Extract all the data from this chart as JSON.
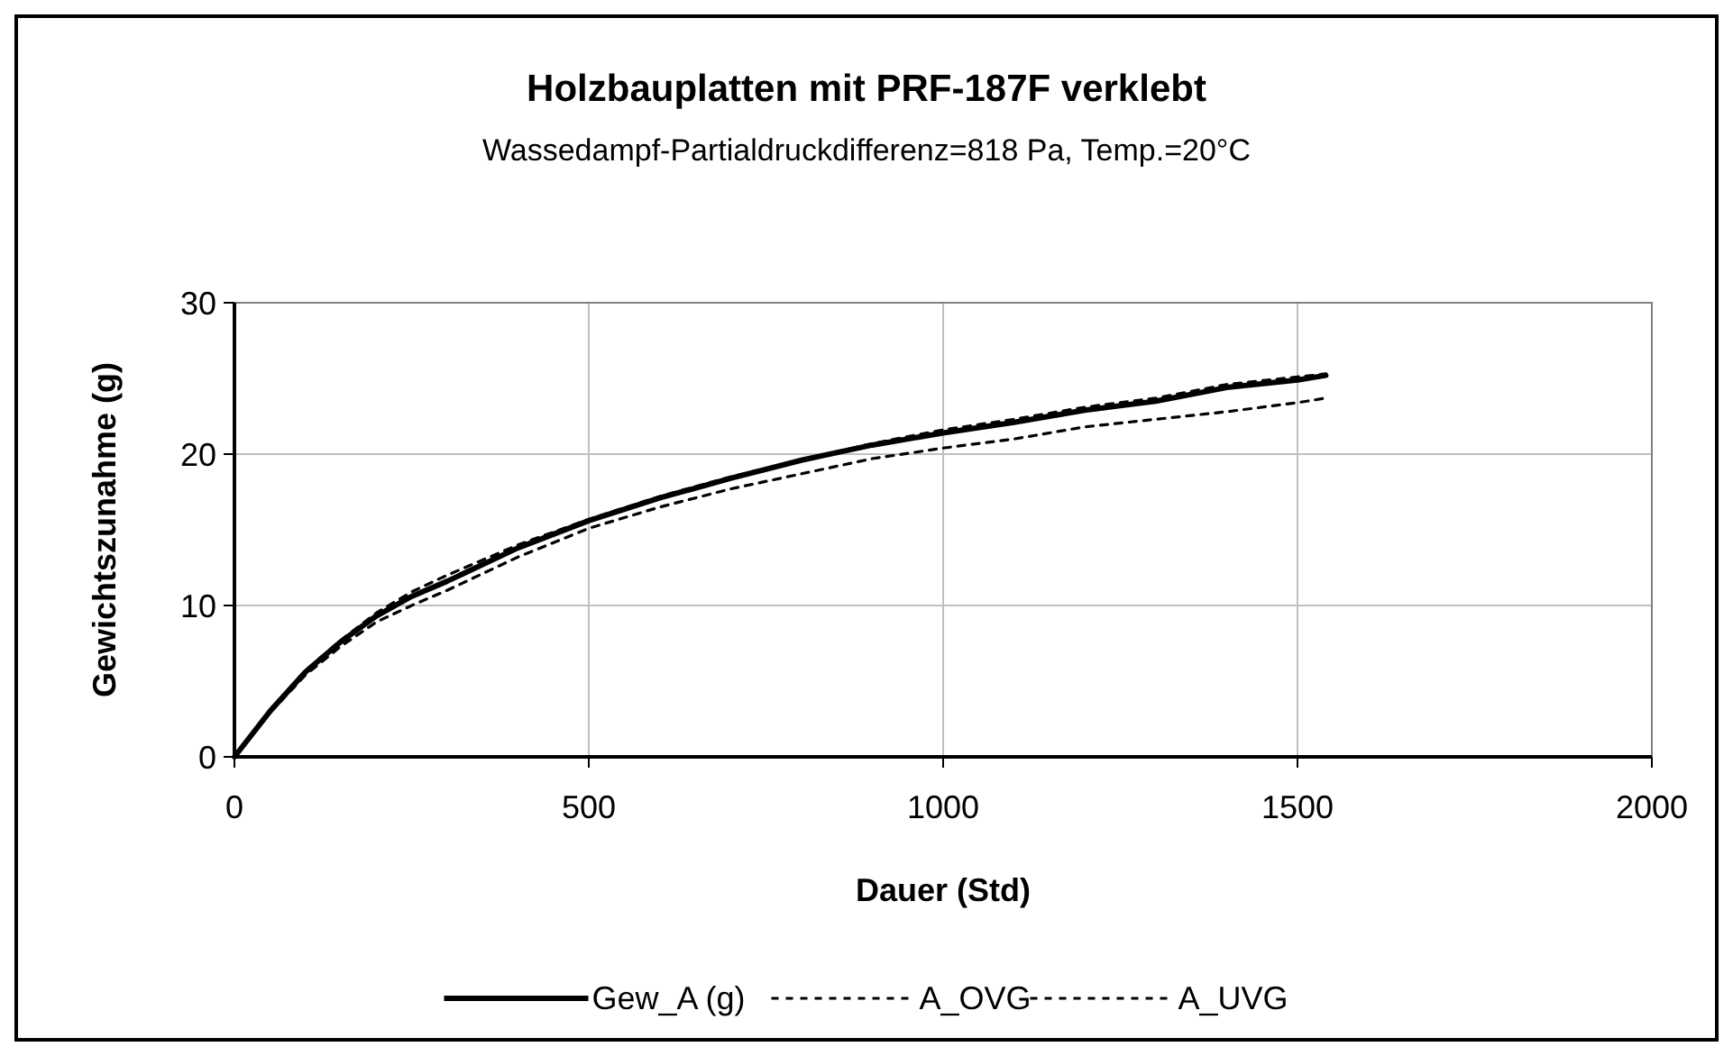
{
  "chart_data": {
    "type": "line",
    "title": "Holzbauplatten  mit PRF-187F verklebt",
    "subtitle": "Wassedampf-Partialdruckdifferenz=818 Pa, Temp.=20°C",
    "xlabel": "Dauer (Std)",
    "ylabel": "Gewichtszunahme (g)",
    "x": [
      0,
      50,
      100,
      150,
      200,
      250,
      300,
      400,
      500,
      600,
      700,
      800,
      900,
      1000,
      1100,
      1200,
      1300,
      1400,
      1500,
      1540
    ],
    "series": [
      {
        "name": "Gew_A (g)",
        "color": "#000000",
        "line_style": "solid",
        "values": [
          0,
          3,
          5.6,
          7.6,
          9.3,
          10.6,
          11.6,
          13.8,
          15.6,
          17.1,
          18.4,
          19.6,
          20.6,
          21.4,
          22.1,
          22.9,
          23.5,
          24.4,
          24.9,
          25.2
        ]
      },
      {
        "name": "A_OVG",
        "color": "#000000",
        "line_style": "dashed",
        "values": [
          0,
          3.1,
          5.7,
          7.7,
          9.5,
          10.9,
          12,
          14,
          15.7,
          17.2,
          18.5,
          19.6,
          20.7,
          21.6,
          22.3,
          23.1,
          23.7,
          24.6,
          25.1,
          25.3
        ]
      },
      {
        "name": "A_UVG",
        "color": "#000000",
        "line_style": "dashed",
        "values": [
          0,
          2.9,
          5.4,
          7.3,
          8.9,
          10,
          11,
          13.2,
          15.1,
          16.5,
          17.7,
          18.7,
          19.7,
          20.4,
          21,
          21.8,
          22.3,
          22.8,
          23.4,
          23.7
        ]
      }
    ],
    "xlim": [
      0,
      2000
    ],
    "xticks": [
      0,
      500,
      1000,
      1500,
      2000
    ],
    "ylim": [
      0,
      30
    ],
    "yticks": [
      0,
      10,
      20,
      30
    ],
    "grid": true,
    "legend": "bottom",
    "marker": "none"
  }
}
